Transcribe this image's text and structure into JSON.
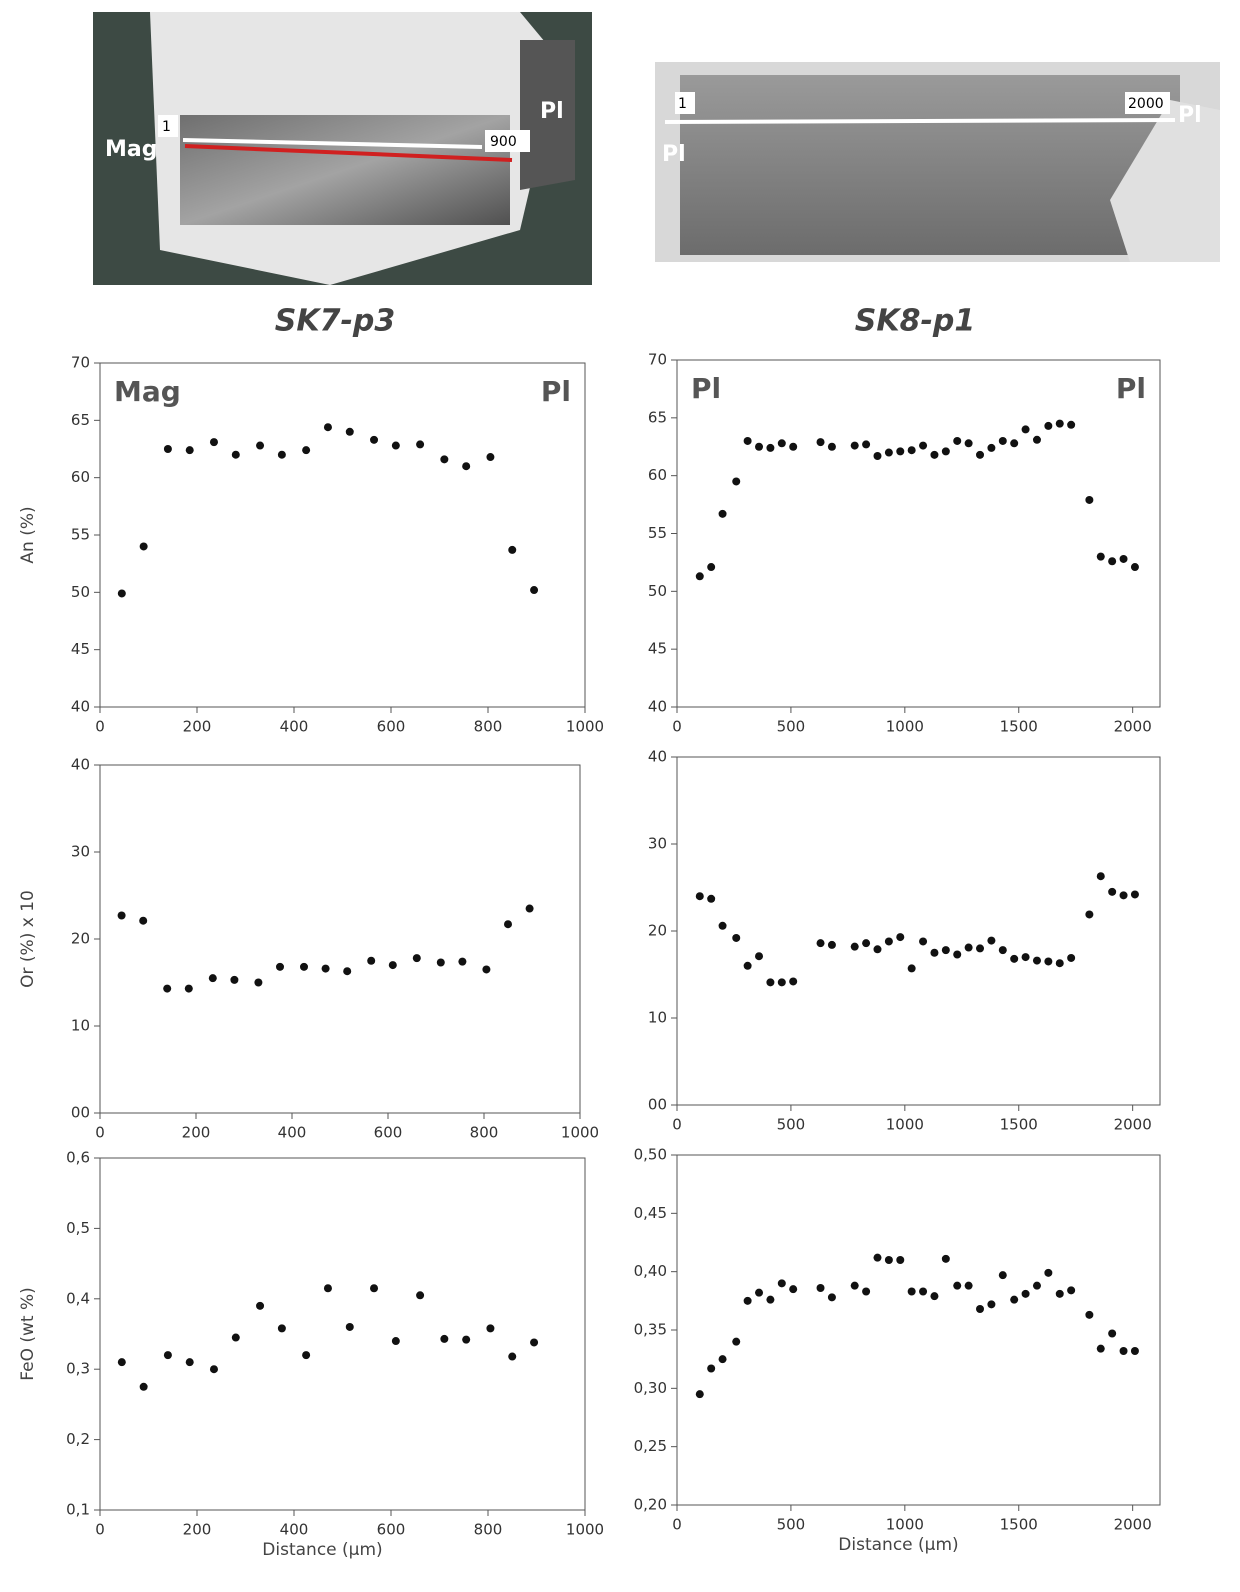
{
  "sample_titles": [
    "SK7-p3",
    "SK8-p1"
  ],
  "photos": [
    {
      "labels": [
        "Mag",
        "1",
        "900",
        "Pl"
      ]
    },
    {
      "labels": [
        "1",
        "2000",
        "Pl",
        "Pl"
      ]
    }
  ],
  "chart_data": [
    {
      "type": "scatter",
      "ylabel": "An (%)",
      "annotations": [
        "Mag",
        "Pl"
      ],
      "color": "#111111",
      "x": [
        45,
        90,
        140,
        185,
        235,
        280,
        330,
        375,
        425,
        470,
        515,
        565,
        610,
        660,
        710,
        755,
        805,
        850,
        895
      ],
      "values": [
        49.9,
        54,
        62.5,
        62.4,
        63.1,
        62,
        62.8,
        62,
        62.4,
        64.4,
        64,
        63.3,
        62.8,
        62.9,
        61.6,
        61,
        61.8,
        53.7,
        50.2
      ],
      "xlim": [
        0,
        1000
      ],
      "xticks": [
        0,
        200,
        400,
        600,
        800,
        1000
      ],
      "ylim": [
        40,
        70
      ],
      "yticks": [
        40,
        45,
        50,
        55,
        60,
        65,
        70
      ]
    },
    {
      "type": "scatter",
      "annotations": [
        "Pl",
        "Pl"
      ],
      "color": "#111111",
      "x": [
        100,
        150,
        200,
        260,
        310,
        360,
        410,
        460,
        510,
        630,
        680,
        780,
        830,
        880,
        930,
        980,
        1030,
        1080,
        1130,
        1180,
        1230,
        1280,
        1330,
        1380,
        1430,
        1480,
        1530,
        1580,
        1630,
        1680,
        1730,
        1810,
        1860,
        1910,
        1960,
        2010
      ],
      "values": [
        51.3,
        52.1,
        56.7,
        59.5,
        63,
        62.5,
        62.4,
        62.8,
        62.5,
        62.9,
        62.5,
        62.6,
        62.7,
        61.7,
        62,
        62.1,
        62.2,
        62.6,
        61.8,
        62.1,
        63,
        62.8,
        61.8,
        62.4,
        63,
        62.8,
        64,
        63.1,
        64.3,
        64.5,
        64.4,
        57.9,
        53,
        52.6,
        52.8,
        52.1
      ],
      "xlim": [
        0,
        2120
      ],
      "xticks": [
        0,
        500,
        1000,
        1500,
        2000
      ],
      "ylim": [
        40,
        70
      ],
      "yticks": [
        40,
        45,
        50,
        55,
        60,
        65,
        70
      ]
    },
    {
      "type": "scatter",
      "ylabel": "Or (%) x 10",
      "color": "#111111",
      "x": [
        45,
        90,
        140,
        185,
        235,
        280,
        330,
        375,
        425,
        470,
        515,
        565,
        610,
        660,
        710,
        755,
        805,
        850,
        895
      ],
      "values": [
        22.7,
        22.1,
        14.3,
        14.3,
        15.5,
        15.3,
        15,
        16.8,
        16.8,
        16.6,
        16.3,
        17.5,
        17,
        17.8,
        17.3,
        17.4,
        16.5,
        21.7,
        23.5
      ],
      "xlim": [
        0,
        1000
      ],
      "xticks": [
        0,
        200,
        400,
        600,
        800,
        1000
      ],
      "ylim": [
        0,
        40
      ],
      "yticks": [
        {
          "value": 0,
          "label": "00"
        },
        10,
        20,
        30,
        40
      ]
    },
    {
      "type": "scatter",
      "color": "#111111",
      "x": [
        100,
        150,
        200,
        260,
        310,
        360,
        410,
        460,
        510,
        630,
        680,
        780,
        830,
        880,
        930,
        980,
        1030,
        1080,
        1130,
        1180,
        1230,
        1280,
        1330,
        1380,
        1430,
        1480,
        1530,
        1580,
        1630,
        1680,
        1730,
        1810,
        1860,
        1910,
        1960,
        2010
      ],
      "values": [
        24,
        23.7,
        20.6,
        19.2,
        16,
        17.1,
        14.1,
        14.1,
        14.2,
        18.6,
        18.4,
        18.2,
        18.6,
        17.9,
        18.8,
        19.3,
        15.7,
        18.8,
        17.5,
        17.8,
        17.3,
        18.1,
        18,
        18.9,
        17.8,
        16.8,
        17,
        16.6,
        16.5,
        16.3,
        16.9,
        21.9,
        26.3,
        24.5,
        24.1,
        24.2
      ],
      "xlim": [
        0,
        2120
      ],
      "xticks": [
        0,
        500,
        1000,
        1500,
        2000
      ],
      "ylim": [
        0,
        40
      ],
      "yticks": [
        {
          "value": 0,
          "label": "00"
        },
        10,
        20,
        30,
        40
      ]
    },
    {
      "type": "scatter",
      "ylabel": "FeO (wt %)",
      "xlabel": "Distance (µm)",
      "color": "#111111",
      "x": [
        45,
        90,
        140,
        185,
        235,
        280,
        330,
        375,
        425,
        470,
        515,
        565,
        610,
        660,
        710,
        755,
        805,
        850,
        895
      ],
      "values": [
        0.31,
        0.275,
        0.32,
        0.31,
        0.3,
        0.345,
        0.39,
        0.358,
        0.32,
        0.415,
        0.36,
        0.415,
        0.34,
        0.405,
        0.343,
        0.342,
        0.358,
        0.318,
        0.338
      ],
      "xlim": [
        0,
        1000
      ],
      "xticks": [
        0,
        200,
        400,
        600,
        800,
        1000
      ],
      "ylim": [
        0.1,
        0.6
      ],
      "yticks": [
        {
          "value": 0.1,
          "label": "0,1"
        },
        {
          "value": 0.2,
          "label": "0,2"
        },
        {
          "value": 0.3,
          "label": "0,3"
        },
        {
          "value": 0.4,
          "label": "0,4"
        },
        {
          "value": 0.5,
          "label": "0,5"
        },
        {
          "value": 0.6,
          "label": "0,6"
        }
      ]
    },
    {
      "type": "scatter",
      "xlabel": "Distance (µm)",
      "color": "#111111",
      "x": [
        100,
        150,
        200,
        260,
        310,
        360,
        410,
        460,
        510,
        630,
        680,
        780,
        830,
        880,
        930,
        980,
        1030,
        1080,
        1130,
        1180,
        1230,
        1280,
        1330,
        1380,
        1430,
        1480,
        1530,
        1580,
        1630,
        1680,
        1730,
        1810,
        1860,
        1910,
        1960,
        2010
      ],
      "values": [
        0.295,
        0.317,
        0.325,
        0.34,
        0.375,
        0.382,
        0.376,
        0.39,
        0.385,
        0.386,
        0.378,
        0.388,
        0.383,
        0.412,
        0.41,
        0.41,
        0.383,
        0.383,
        0.379,
        0.411,
        0.388,
        0.388,
        0.368,
        0.372,
        0.397,
        0.376,
        0.381,
        0.388,
        0.399,
        0.381,
        0.384,
        0.363,
        0.334,
        0.347,
        0.332,
        0.332
      ],
      "xlim": [
        0,
        2120
      ],
      "xticks": [
        0,
        500,
        1000,
        1500,
        2000
      ],
      "ylim": [
        0.2,
        0.5
      ],
      "yticks": [
        {
          "value": 0.2,
          "label": "0,20"
        },
        {
          "value": 0.25,
          "label": "0,25"
        },
        {
          "value": 0.3,
          "label": "0,30"
        },
        {
          "value": 0.35,
          "label": "0,35"
        },
        {
          "value": 0.4,
          "label": "0,40"
        },
        {
          "value": 0.45,
          "label": "0,45"
        },
        {
          "value": 0.5,
          "label": "0,50"
        }
      ]
    }
  ]
}
